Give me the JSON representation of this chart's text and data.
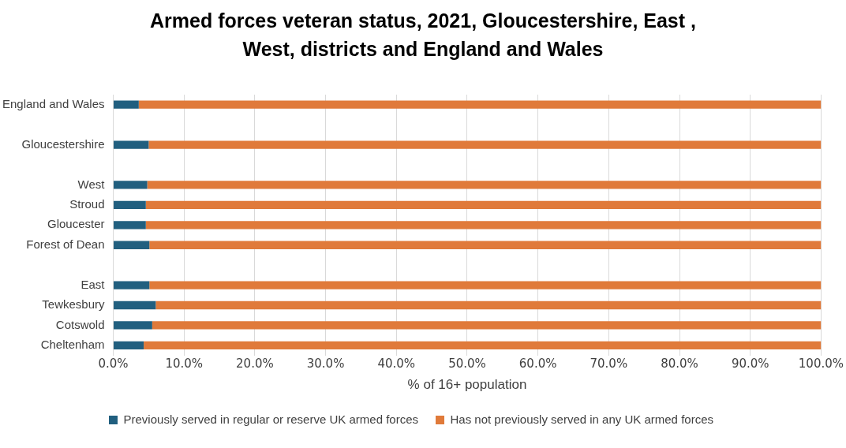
{
  "chart_data": {
    "type": "bar",
    "orientation": "horizontal",
    "stacked": true,
    "title": "Armed forces veteran status, 2021, Gloucestershire, East , West, districts and England and Wales",
    "xlabel": "% of 16+ population",
    "categories": [
      "England and Wales",
      null,
      "Gloucestershire",
      null,
      "West",
      "Stroud",
      "Gloucester",
      "Forest of Dean",
      null,
      "East",
      "Tewkesbury",
      "Cotswold",
      "Cheltenham"
    ],
    "series": [
      {
        "name": "Previously served in regular or reserve UK armed forces",
        "color": "#215f7f",
        "values": [
          3.6,
          null,
          5.0,
          null,
          4.8,
          4.6,
          4.6,
          5.1,
          null,
          5.1,
          6.0,
          5.5,
          4.3
        ]
      },
      {
        "name": "Has not previously served in any UK armed forces",
        "color": "#e07a3a",
        "values": [
          96.4,
          null,
          95.0,
          null,
          95.2,
          95.4,
          95.4,
          94.9,
          null,
          94.9,
          94.0,
          94.5,
          95.7
        ]
      }
    ],
    "xlim": [
      0,
      100
    ],
    "xticks": [
      {
        "value": 0,
        "label": "0.0%"
      },
      {
        "value": 10,
        "label": "10.0%"
      },
      {
        "value": 20,
        "label": "20.0%"
      },
      {
        "value": 30,
        "label": "30.0%"
      },
      {
        "value": 40,
        "label": "40.0%"
      },
      {
        "value": 50,
        "label": "50.0%"
      },
      {
        "value": 60,
        "label": "60.0%"
      },
      {
        "value": 70,
        "label": "70.0%"
      },
      {
        "value": 80,
        "label": "80.0%"
      },
      {
        "value": 90,
        "label": "90.0%"
      },
      {
        "value": 100,
        "label": "100.0%"
      }
    ],
    "grid": "x",
    "legend": "bottom"
  }
}
